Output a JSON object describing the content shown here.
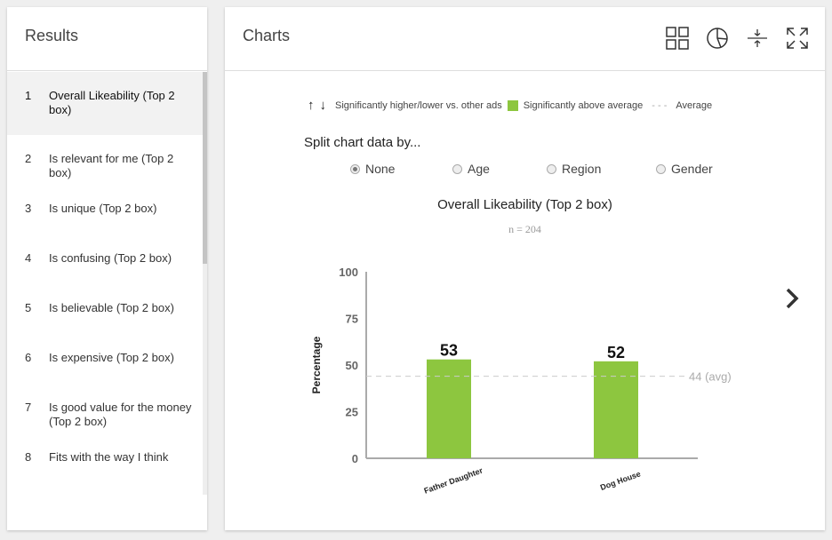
{
  "results": {
    "title": "Results",
    "items": [
      {
        "num": "1",
        "label": "Overall Likeability (Top 2 box)"
      },
      {
        "num": "2",
        "label": "Is relevant for me (Top 2 box)"
      },
      {
        "num": "3",
        "label": "Is unique (Top 2 box)"
      },
      {
        "num": "4",
        "label": "Is confusing (Top 2 box)"
      },
      {
        "num": "5",
        "label": "Is believable (Top 2 box)"
      },
      {
        "num": "6",
        "label": "Is expensive (Top 2 box)"
      },
      {
        "num": "7",
        "label": "Is good value for the money (Top 2 box)"
      },
      {
        "num": "8",
        "label": "Fits with the way I think"
      }
    ]
  },
  "charts": {
    "title": "Charts",
    "legend": {
      "sig_hl": "Significantly higher/lower vs. other ads",
      "sig_above": "Significantly above average",
      "average": "Average"
    },
    "split_label": "Split chart data by...",
    "options": [
      "None",
      "Age",
      "Region",
      "Gender"
    ],
    "selected": "None"
  },
  "colors": {
    "bar": "#8dc63f"
  },
  "chart_data": {
    "type": "bar",
    "title": "Overall Likeability (Top 2 box)",
    "subtitle": "n = 204",
    "categories": [
      "Father Daughter",
      "Dog House"
    ],
    "values": [
      53,
      52
    ],
    "ylabel": "Percentage",
    "xlabel": "",
    "ylim": [
      0,
      100
    ],
    "yticks": [
      "0",
      "25",
      "50",
      "75",
      "100"
    ],
    "average": 44,
    "average_label": "44 (avg)"
  }
}
